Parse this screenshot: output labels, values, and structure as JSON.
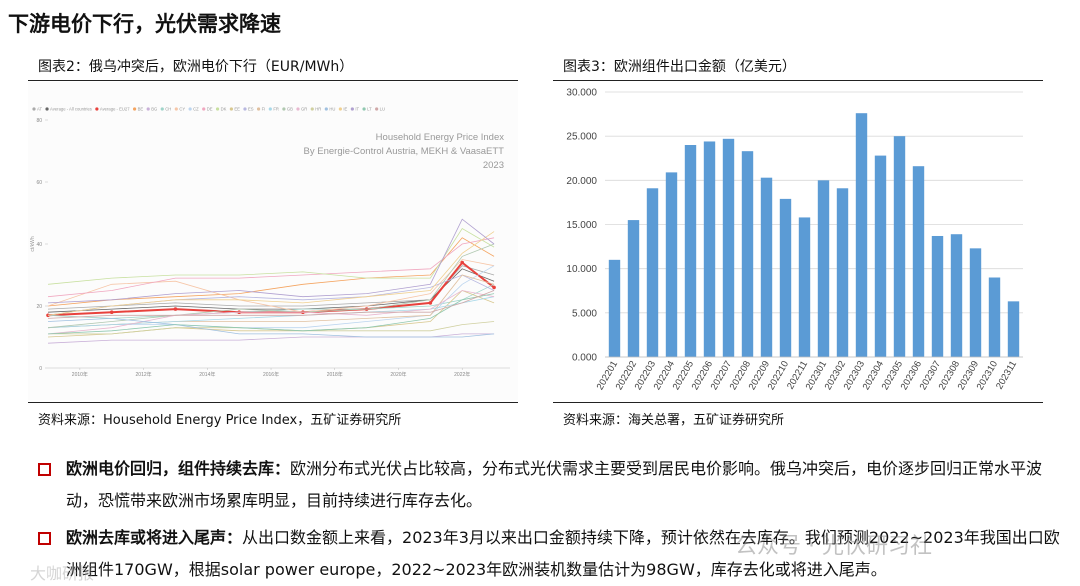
{
  "header": {
    "title": "下游电价下行，光伏需求降速"
  },
  "left": {
    "caption": "图表2：俄乌冲突后，欧洲电价下行（EUR/MWh）",
    "source": "资料来源：Household Energy Price Index，五矿证券研究所",
    "chart_data": {
      "type": "line",
      "annotations": [
        "Household Energy Price Index",
        "By Energie-Control Austria, MEKH & VaasaETT",
        "2023"
      ],
      "y_label": "ct/kWh",
      "x": [
        2009,
        2011,
        2013,
        2015,
        2017,
        2019,
        2021,
        2022,
        2023
      ],
      "xlim": [
        2009,
        2023.5
      ],
      "xticks": [
        {
          "value": 2010,
          "label": "2010年"
        },
        {
          "value": 2012,
          "label": "2012年"
        },
        {
          "value": 2014,
          "label": "2014年"
        },
        {
          "value": 2016,
          "label": "2016年"
        },
        {
          "value": 2018,
          "label": "2018年"
        },
        {
          "value": 2020,
          "label": "2020年"
        },
        {
          "value": 2022,
          "label": "2022年"
        }
      ],
      "ylim": [
        0,
        80
      ],
      "yticks": [
        0,
        20,
        40,
        60,
        80
      ],
      "series": [
        {
          "name": "AT",
          "color": "#aaaaaa",
          "values": [
            19,
            20,
            21,
            20,
            20,
            21,
            22,
            33,
            30
          ]
        },
        {
          "name": "Average - All countries",
          "color": "#666666",
          "values": [
            18,
            19,
            20,
            19,
            19,
            20,
            22,
            32,
            28
          ]
        },
        {
          "name": "Average - EU27",
          "color": "#e8413c",
          "values": [
            17,
            18,
            19,
            18,
            18,
            19,
            21,
            34,
            26
          ]
        },
        {
          "name": "BE",
          "color": "#f4a460",
          "values": [
            20,
            22,
            23,
            24,
            27,
            29,
            30,
            42,
            36
          ]
        },
        {
          "name": "BG",
          "color": "#c9b0d8",
          "values": [
            8,
            9,
            9,
            9,
            10,
            10,
            10,
            11,
            11
          ]
        },
        {
          "name": "CH",
          "color": "#9fd4c9",
          "values": [
            17,
            16,
            17,
            18,
            19,
            19,
            20,
            22,
            27
          ]
        },
        {
          "name": "CY",
          "color": "#f6c6a8",
          "values": [
            20,
            27,
            28,
            22,
            18,
            20,
            24,
            35,
            33
          ]
        },
        {
          "name": "CZ",
          "color": "#bcd5ef",
          "values": [
            13,
            14,
            14,
            13,
            13,
            15,
            17,
            27,
            33
          ]
        },
        {
          "name": "DE",
          "color": "#f0a8c0",
          "values": [
            23,
            25,
            29,
            29,
            30,
            31,
            32,
            40,
            42
          ]
        },
        {
          "name": "DK",
          "color": "#c8e0a0",
          "values": [
            27,
            29,
            30,
            30,
            31,
            29,
            29,
            45,
            39
          ]
        },
        {
          "name": "EE",
          "color": "#d8c890",
          "values": [
            10,
            11,
            13,
            12,
            12,
            13,
            15,
            25,
            21
          ]
        },
        {
          "name": "ES",
          "color": "#b8b8e0",
          "values": [
            17,
            20,
            22,
            23,
            22,
            23,
            26,
            30,
            25
          ]
        },
        {
          "name": "FI",
          "color": "#e0c0a0",
          "values": [
            13,
            14,
            15,
            15,
            15,
            16,
            17,
            30,
            27
          ]
        },
        {
          "name": "FR",
          "color": "#a8d8e8",
          "values": [
            13,
            14,
            15,
            16,
            17,
            18,
            19,
            21,
            23
          ]
        },
        {
          "name": "GB",
          "color": "#b0c8b0",
          "values": [
            13,
            15,
            17,
            19,
            18,
            19,
            22,
            36,
            40
          ]
        },
        {
          "name": "GR",
          "color": "#e8b8d0",
          "values": [
            11,
            13,
            17,
            18,
            18,
            17,
            19,
            25,
            23
          ]
        },
        {
          "name": "HR",
          "color": "#d0d0a0",
          "values": [
            11,
            11,
            13,
            13,
            12,
            12,
            12,
            14,
            15
          ]
        },
        {
          "name": "HU",
          "color": "#a0c0e0",
          "values": [
            15,
            16,
            14,
            11,
            11,
            10,
            10,
            10,
            11
          ]
        },
        {
          "name": "IE",
          "color": "#f0d090",
          "values": [
            17,
            20,
            22,
            22,
            21,
            23,
            25,
            37,
            44
          ]
        },
        {
          "name": "IT",
          "color": "#b0a0d0",
          "values": [
            21,
            22,
            24,
            25,
            23,
            24,
            27,
            48,
            40
          ]
        },
        {
          "name": "LT",
          "color": "#90c8b0",
          "values": [
            11,
            12,
            14,
            13,
            12,
            13,
            16,
            22,
            24
          ]
        },
        {
          "name": "LU",
          "color": "#d0a8a8",
          "values": [
            16,
            17,
            17,
            17,
            17,
            18,
            18,
            21,
            25
          ]
        }
      ]
    }
  },
  "right": {
    "caption": "图表3：欧洲组件出口金额（亿美元）",
    "source": "资料来源：海关总署，五矿证券研究所",
    "chart_data": {
      "type": "bar",
      "color": "#5b9bd5",
      "categories": [
        "202201",
        "202202",
        "202203",
        "202204",
        "202205",
        "202206",
        "202207",
        "202208",
        "202209",
        "202210",
        "202211",
        "202301",
        "202302",
        "202303",
        "202304",
        "202305",
        "202306",
        "202307",
        "202308",
        "202309",
        "202310",
        "202311"
      ],
      "values": [
        11.0,
        15.5,
        19.1,
        20.9,
        24.0,
        24.4,
        24.7,
        23.3,
        20.3,
        17.9,
        15.8,
        20.0,
        19.1,
        27.6,
        22.8,
        25.0,
        21.6,
        13.7,
        13.9,
        12.3,
        9.0,
        6.3
      ],
      "ylim": [
        0,
        30
      ],
      "yticks": [
        {
          "value": 0,
          "label": "0.000"
        },
        {
          "value": 5,
          "label": "5.000"
        },
        {
          "value": 10,
          "label": "10.000"
        },
        {
          "value": 15,
          "label": "15.000"
        },
        {
          "value": 20,
          "label": "20.000"
        },
        {
          "value": 25,
          "label": "25.000"
        },
        {
          "value": 30,
          "label": "30.000"
        }
      ],
      "grid": true
    }
  },
  "bullets": [
    {
      "lead": "欧洲电价回归，组件持续去库：",
      "text": "欧洲分布式光伏占比较高，分布式光伏需求主要受到居民电价影响。俄乌冲突后，电价逐步回归正常水平波动，恐慌带来欧洲市场累库明显，目前持续进行库存去化。"
    },
    {
      "lead": "欧洲去库或将进入尾声：",
      "text": "从出口数金额上来看，2023年3月以来出口金额持续下降，预计依然在去库存。我们预测2022~2023年我国出口欧洲组件170GW，根据solar power europe，2022~2023年欧洲装机数量估计为98GW，库存去化或将进入尾声。"
    }
  ],
  "watermarks": [
    "公众号 · 光伏研习社",
    "大咖研报"
  ]
}
